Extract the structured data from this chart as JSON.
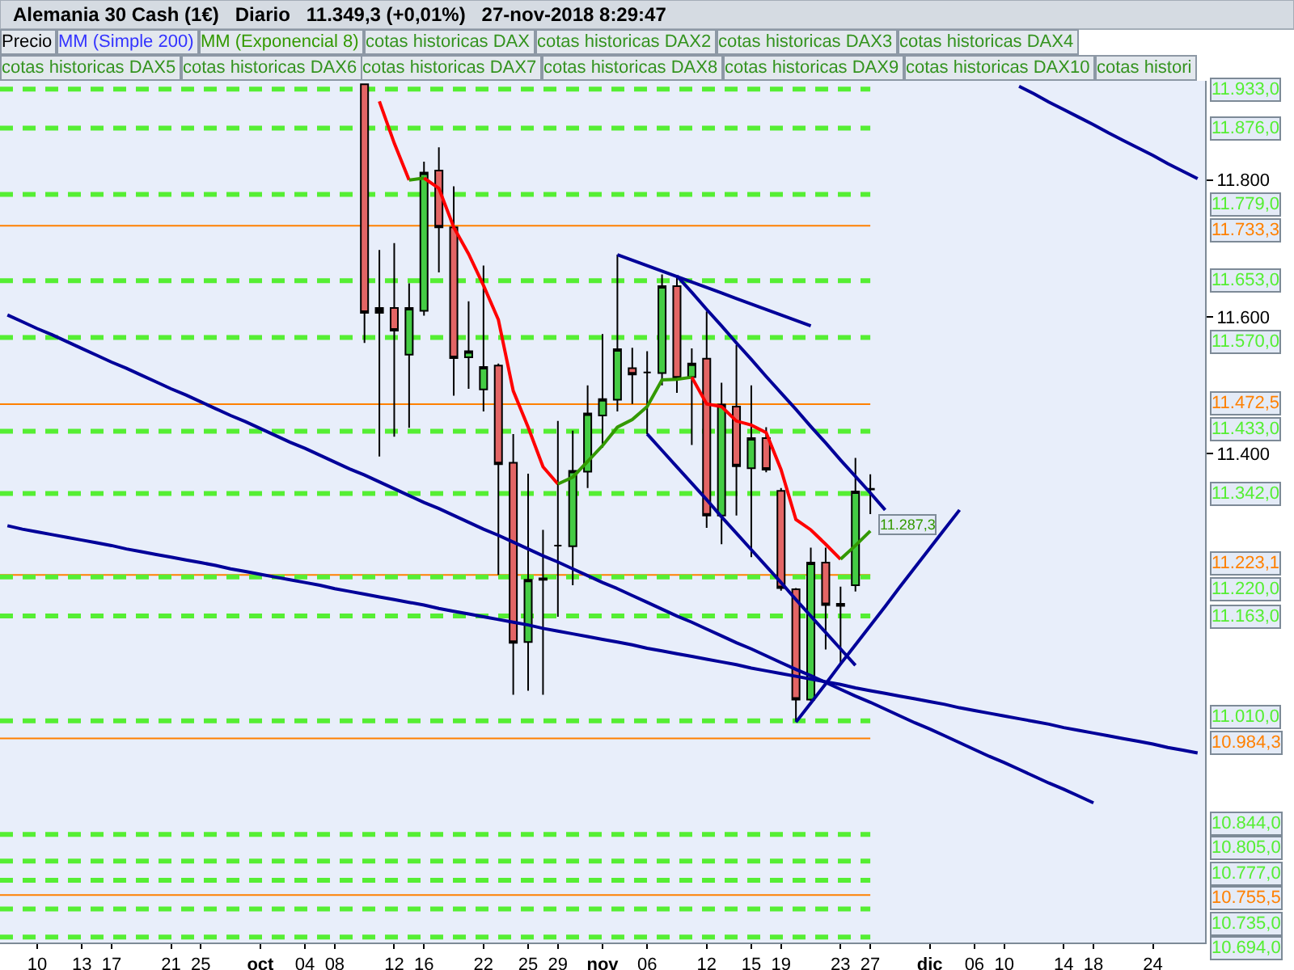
{
  "chart_data": {
    "type": "candlestick",
    "title": "Alemania 30 Cash (1€)   Diario   11.349,3 (+0,01%)   27-nov-2018 8:29:47",
    "categories": [
      null,
      null,
      "10",
      null,
      null,
      "13",
      null,
      "17",
      null,
      null,
      null,
      "21",
      null,
      "25",
      null,
      null,
      null,
      "oct",
      null,
      null,
      "04",
      null,
      "08",
      null,
      null,
      null,
      "12",
      null,
      "16",
      null,
      null,
      null,
      "22",
      null,
      null,
      "25",
      null,
      "29",
      null,
      null,
      "nov",
      null,
      null,
      "06",
      null,
      null,
      null,
      "12",
      null,
      null,
      "15",
      null,
      "19",
      null,
      null,
      null,
      "23",
      null,
      "27",
      null,
      null,
      null,
      "dic",
      null,
      null,
      "06",
      null,
      "10",
      null,
      null,
      null,
      "14",
      null,
      "18",
      null,
      null,
      null,
      "24",
      null,
      null,
      null
    ],
    "series": [
      {
        "name": "Precio",
        "ohlc": [
          null,
          null,
          null,
          null,
          null,
          null,
          null,
          null,
          null,
          null,
          null,
          null,
          null,
          null,
          null,
          null,
          null,
          null,
          null,
          null,
          null,
          null,
          null,
          null,
          [
            11940,
            11940,
            11562,
            11606
          ],
          [
            11606,
            11698,
            11396,
            11613
          ],
          [
            11613,
            11708,
            11425,
            11580
          ],
          [
            11545,
            11649,
            11438,
            11613
          ],
          [
            11609,
            11827,
            11602,
            11811
          ],
          [
            11814,
            11848,
            11665,
            11731
          ],
          [
            11731,
            11791,
            11485,
            11540
          ],
          [
            11541,
            11623,
            11495,
            11550
          ],
          [
            11494,
            11675,
            11462,
            11527
          ],
          [
            11529,
            11532,
            11223,
            11385
          ],
          [
            11387,
            11429,
            11048,
            11124
          ],
          [
            11125,
            11371,
            11054,
            11216
          ],
          [
            11218,
            11289,
            11048,
            11216
          ],
          [
            11266,
            11448,
            11162,
            11266
          ],
          [
            11265,
            11434,
            11208,
            11375
          ],
          [
            11374,
            11500,
            11350,
            11459
          ],
          [
            11456,
            11575,
            11409,
            11480
          ],
          [
            11479,
            11691,
            11462,
            11553
          ],
          [
            11525,
            11555,
            11473,
            11516
          ],
          [
            11519,
            11550,
            11429,
            11519
          ],
          [
            11518,
            11662,
            11500,
            11645
          ],
          [
            11645,
            11660,
            11489,
            11510
          ],
          [
            11512,
            11554,
            11413,
            11532
          ],
          [
            11539,
            11608,
            11292,
            11310
          ],
          [
            11310,
            11504,
            11268,
            11472
          ],
          [
            11469,
            11559,
            11310,
            11382
          ],
          [
            11379,
            11500,
            11249,
            11423
          ],
          [
            11423,
            11439,
            11373,
            11377
          ],
          [
            11346,
            11350,
            11200,
            11204
          ],
          [
            11202,
            11204,
            11010,
            11041
          ],
          [
            11041,
            11263,
            11039,
            11241
          ],
          [
            11241,
            11263,
            11114,
            11179
          ],
          [
            11178,
            11206,
            11092,
            11181
          ],
          [
            11208,
            11394,
            11199,
            11345
          ],
          [
            11348,
            11370,
            11312,
            11349
          ],
          null,
          null,
          null,
          null,
          null,
          null,
          null,
          null,
          null,
          null,
          null,
          null,
          null,
          null,
          null,
          null,
          null,
          null,
          null,
          null,
          null,
          null
        ],
        "colors": [
          null,
          null,
          null,
          null,
          null,
          null,
          null,
          null,
          null,
          null,
          null,
          null,
          null,
          null,
          null,
          null,
          null,
          null,
          null,
          null,
          null,
          null,
          null,
          null,
          "#e36565",
          "#000000",
          "#e36565",
          "#44cc44",
          "#44cc44",
          "#e36565",
          "#e36565",
          "#44cc44",
          "#44cc44",
          "#e36565",
          "#e36565",
          "#44cc44",
          "#000000",
          "#000000",
          "#44cc44",
          "#44cc44",
          "#44cc44",
          "#44cc44",
          "#e36565",
          "#000000",
          "#44cc44",
          "#e36565",
          "#44cc44",
          "#e36565",
          "#44cc44",
          "#e36565",
          "#44cc44",
          "#e36565",
          "#e36565",
          "#e36565",
          "#44cc44",
          "#e36565",
          "#000000",
          "#44cc44",
          "#000000",
          null,
          null,
          null,
          null,
          null,
          null,
          null,
          null,
          null,
          null,
          null,
          null,
          null,
          null,
          null,
          null,
          null,
          null,
          null,
          null,
          null,
          null
        ]
      },
      {
        "name": "MM (Simple 200)",
        "type": "line",
        "color": "#3333ff",
        "values": [
          null,
          null,
          null,
          null,
          null,
          null,
          null,
          null,
          null,
          null,
          null,
          null,
          null,
          null,
          null,
          null,
          null,
          null,
          null,
          null,
          null,
          null,
          null,
          null,
          null,
          null,
          null,
          null,
          null,
          null,
          null,
          null,
          null,
          null,
          null,
          null,
          null,
          null,
          null,
          null,
          null,
          null,
          null,
          null,
          null,
          null,
          null,
          null,
          null,
          null,
          null,
          null,
          null,
          null,
          null,
          null,
          null,
          null,
          null,
          null,
          null,
          null,
          null,
          null,
          null,
          null,
          null,
          null,
          null,
          null,
          null,
          null,
          null,
          null,
          null,
          null,
          null,
          null,
          null,
          null,
          null
        ]
      },
      {
        "type": "line",
        "color": "#ff0000",
        "values": [
          null,
          null,
          null,
          null,
          null,
          null,
          null,
          null,
          null,
          null,
          null,
          null,
          null,
          null,
          null,
          null,
          null,
          null,
          null,
          null,
          null,
          null,
          null,
          null,
          null,
          11915,
          11854,
          11800,
          null,
          null,
          null,
          null,
          null,
          null,
          null,
          null,
          null,
          null,
          null,
          null,
          null,
          null,
          null,
          null,
          null,
          null,
          null,
          null,
          null,
          null,
          null,
          null,
          null,
          null,
          null,
          null,
          null,
          null,
          null,
          null,
          null,
          null,
          null,
          null,
          null,
          null,
          null,
          null,
          null,
          null,
          null,
          null,
          null,
          null,
          null,
          null,
          null,
          null,
          null,
          null,
          null
        ]
      },
      {
        "name": "MM (Exponencial 8)",
        "type": "line",
        "color": "#339900",
        "values": [
          null,
          null,
          null,
          null,
          null,
          null,
          null,
          null,
          null,
          null,
          null,
          null,
          null,
          null,
          null,
          null,
          null,
          null,
          null,
          null,
          null,
          null,
          null,
          null,
          null,
          null,
          null,
          11800,
          11803,
          null,
          null,
          null,
          null,
          null,
          null,
          null,
          null,
          null,
          null,
          null,
          null,
          null,
          null,
          null,
          null,
          null,
          null,
          null,
          null,
          null,
          null,
          null,
          null,
          null,
          null,
          null,
          null,
          null,
          null,
          null,
          null,
          null,
          null,
          null,
          null,
          null,
          null,
          null,
          null,
          null,
          null,
          null,
          null,
          null,
          null,
          null,
          null,
          null,
          null,
          null,
          null
        ]
      },
      {
        "type": "line",
        "color": "#ff0000",
        "values": [
          null,
          null,
          null,
          null,
          null,
          null,
          null,
          null,
          null,
          null,
          null,
          null,
          null,
          null,
          null,
          null,
          null,
          null,
          null,
          null,
          null,
          null,
          null,
          null,
          null,
          null,
          null,
          null,
          11803,
          11788,
          11731,
          11692,
          11646,
          11596,
          11492,
          11439,
          11381,
          11356,
          null,
          null,
          null,
          null,
          null,
          null,
          null,
          null,
          null,
          null,
          null,
          null,
          null,
          null,
          null,
          null,
          null,
          null,
          null,
          null,
          null,
          null,
          null,
          null,
          null,
          null,
          null,
          null,
          null,
          null,
          null,
          null,
          null,
          null,
          null,
          null,
          null,
          null,
          null,
          null,
          null,
          null,
          null
        ]
      },
      {
        "type": "line",
        "color": "#339900",
        "values": [
          null,
          null,
          null,
          null,
          null,
          null,
          null,
          null,
          null,
          null,
          null,
          null,
          null,
          null,
          null,
          null,
          null,
          null,
          null,
          null,
          null,
          null,
          null,
          null,
          null,
          null,
          null,
          null,
          null,
          null,
          null,
          null,
          null,
          null,
          null,
          null,
          null,
          11356,
          11366,
          11389,
          11412,
          11439,
          11450,
          11469,
          11508,
          11509,
          11512,
          null,
          null,
          null,
          null,
          null,
          null,
          null,
          null,
          null,
          null,
          null,
          null,
          null,
          null,
          null,
          null,
          null,
          null,
          null,
          null,
          null,
          null,
          null,
          null,
          null,
          null,
          null,
          null,
          null,
          null,
          null,
          null,
          null,
          null
        ]
      },
      {
        "type": "line",
        "color": "#ff0000",
        "values": [
          null,
          null,
          null,
          null,
          null,
          null,
          null,
          null,
          null,
          null,
          null,
          null,
          null,
          null,
          null,
          null,
          null,
          null,
          null,
          null,
          null,
          null,
          null,
          null,
          null,
          null,
          null,
          null,
          null,
          null,
          null,
          null,
          null,
          null,
          null,
          null,
          null,
          null,
          null,
          null,
          null,
          null,
          null,
          null,
          null,
          null,
          11512,
          11473,
          11469,
          11448,
          11442,
          11431,
          11377,
          11304,
          11289,
          11268,
          11246,
          null,
          null,
          null,
          null,
          null,
          null,
          null,
          null,
          null,
          null,
          null,
          null,
          null,
          null,
          null,
          null,
          null,
          null,
          null,
          null,
          null,
          null,
          null,
          null
        ]
      },
      {
        "type": "line",
        "color": "#339900",
        "values": [
          null,
          null,
          null,
          null,
          null,
          null,
          null,
          null,
          null,
          null,
          null,
          null,
          null,
          null,
          null,
          null,
          null,
          null,
          null,
          null,
          null,
          null,
          null,
          null,
          null,
          null,
          null,
          null,
          null,
          null,
          null,
          null,
          null,
          null,
          null,
          null,
          null,
          null,
          null,
          null,
          null,
          null,
          null,
          null,
          null,
          null,
          null,
          null,
          null,
          null,
          null,
          null,
          null,
          null,
          null,
          null,
          11246,
          11266,
          11287.3,
          null,
          null,
          null,
          null,
          null,
          null,
          null,
          null,
          null,
          null,
          null,
          null,
          null,
          null,
          null,
          null,
          null,
          null,
          null,
          null,
          null,
          null
        ],
        "value_labels": [
          null,
          null,
          null,
          null,
          null,
          null,
          null,
          null,
          null,
          null,
          null,
          null,
          null,
          null,
          null,
          null,
          null,
          null,
          null,
          null,
          null,
          null,
          null,
          null,
          null,
          null,
          null,
          null,
          null,
          null,
          null,
          null,
          null,
          null,
          null,
          null,
          null,
          null,
          null,
          null,
          null,
          null,
          null,
          null,
          null,
          null,
          null,
          null,
          null,
          null,
          null,
          null,
          null,
          null,
          null,
          null,
          null,
          null,
          "11.287,3",
          null,
          null,
          null,
          null,
          null,
          null,
          null,
          null,
          null,
          null,
          null,
          null,
          null,
          null,
          null,
          null,
          null,
          null,
          null,
          null,
          null,
          null
        ]
      },
      {
        "type": "line",
        "color": "#000099",
        "values": [
          11603,
          11593,
          11583,
          11574,
          11564,
          11554,
          11544,
          11534,
          11525,
          11515,
          11505,
          11495,
          11486,
          11476,
          11466,
          11456,
          11447,
          11437,
          11427,
          11417,
          11408,
          11398,
          11388,
          11378,
          11369,
          11359,
          11349,
          11339,
          11329,
          11320,
          11310,
          11300,
          11290,
          11281,
          11271,
          11261,
          11251,
          11242,
          11232,
          11222,
          11212,
          11203,
          11193,
          11183,
          11173,
          11163,
          11154,
          11144,
          11134,
          11124,
          11115,
          11105,
          11095,
          11085,
          11076,
          11066,
          11056,
          11046,
          11037,
          11027,
          11017,
          11007,
          10998,
          10988,
          10978,
          10968,
          10958,
          10949,
          10939,
          10929,
          10919,
          10910,
          10900,
          10890,
          null,
          null,
          null,
          null,
          null,
          null,
          null
        ]
      },
      {
        "type": "line",
        "color": "#000099",
        "values": [
          11295,
          11290,
          11286,
          11282,
          11278,
          11274,
          11270,
          11266,
          11261,
          11257,
          11253,
          11249,
          11245,
          11241,
          11237,
          11232,
          11228,
          11224,
          11220,
          11216,
          11212,
          11208,
          11203,
          11199,
          11195,
          11191,
          11187,
          11183,
          11179,
          11174,
          11170,
          11166,
          11162,
          11158,
          11154,
          11150,
          11145,
          11141,
          11137,
          11133,
          11129,
          11125,
          11121,
          11116,
          11112,
          11108,
          11104,
          11100,
          11096,
          11092,
          11087,
          11083,
          11079,
          11075,
          11071,
          11067,
          11063,
          11058,
          11054,
          11050,
          11046,
          11042,
          11038,
          11034,
          11029,
          11025,
          11021,
          11017,
          11013,
          11009,
          11005,
          11000,
          10996,
          10992,
          10988,
          10984,
          10980,
          10976,
          10971,
          10967,
          10963
        ]
      },
      {
        "type": "line",
        "color": "#000099",
        "values": [
          null,
          null,
          null,
          null,
          null,
          null,
          null,
          null,
          null,
          null,
          null,
          null,
          null,
          null,
          null,
          null,
          null,
          null,
          null,
          null,
          null,
          null,
          null,
          null,
          null,
          null,
          null,
          null,
          null,
          null,
          null,
          null,
          null,
          null,
          null,
          null,
          null,
          null,
          null,
          null,
          null,
          11691,
          11683,
          11675,
          11667,
          11659,
          11651,
          11643,
          11635,
          11627,
          11619,
          11611,
          11603,
          11595,
          11587,
          null,
          null,
          null,
          null,
          null,
          null,
          null,
          null,
          null,
          null,
          null,
          null,
          null,
          null,
          null,
          null,
          null,
          null,
          null,
          null,
          null,
          null,
          null,
          null,
          null,
          null
        ]
      },
      {
        "type": "line",
        "color": "#000099",
        "values": [
          null,
          null,
          null,
          null,
          null,
          null,
          null,
          null,
          null,
          null,
          null,
          null,
          null,
          null,
          null,
          null,
          null,
          null,
          null,
          null,
          null,
          null,
          null,
          null,
          null,
          null,
          null,
          null,
          null,
          null,
          null,
          null,
          null,
          null,
          null,
          null,
          null,
          null,
          null,
          null,
          null,
          null,
          null,
          null,
          null,
          11660,
          11636,
          11611,
          11587,
          11562,
          11538,
          11513,
          11489,
          11465,
          11440,
          11416,
          11391,
          11367,
          11343,
          11318,
          null,
          null,
          null,
          null,
          null,
          null,
          null,
          null,
          null,
          null,
          null,
          null,
          null,
          null,
          null,
          null,
          null,
          null,
          null,
          null,
          null
        ]
      },
      {
        "type": "line",
        "color": "#000099",
        "values": [
          null,
          null,
          null,
          null,
          null,
          null,
          null,
          null,
          null,
          null,
          null,
          null,
          null,
          null,
          null,
          null,
          null,
          null,
          null,
          null,
          null,
          null,
          null,
          null,
          null,
          null,
          null,
          null,
          null,
          null,
          null,
          null,
          null,
          null,
          null,
          null,
          null,
          null,
          null,
          null,
          null,
          null,
          null,
          11429,
          11405,
          11381,
          11357,
          11333,
          11308,
          11284,
          11260,
          11236,
          11212,
          11187,
          11163,
          11139,
          11115,
          11091,
          null,
          null,
          null,
          null,
          null,
          null,
          null,
          null,
          null,
          null,
          null,
          null,
          null,
          null,
          null,
          null,
          null,
          null,
          null,
          null,
          null,
          null,
          null
        ]
      },
      {
        "type": "line",
        "color": "#000099",
        "values": [
          null,
          null,
          null,
          null,
          null,
          null,
          null,
          null,
          null,
          null,
          null,
          null,
          null,
          null,
          null,
          null,
          null,
          null,
          null,
          null,
          null,
          null,
          null,
          null,
          null,
          null,
          null,
          null,
          null,
          null,
          null,
          null,
          null,
          null,
          null,
          null,
          null,
          null,
          null,
          null,
          null,
          null,
          null,
          null,
          null,
          null,
          null,
          null,
          null,
          null,
          null,
          null,
          null,
          11008,
          11036,
          11064,
          11093,
          11121,
          11149,
          11177,
          11206,
          11234,
          11262,
          11290,
          11318,
          null,
          null,
          null,
          null,
          null,
          null,
          null,
          null,
          null,
          null,
          null,
          null,
          null,
          null,
          null,
          null
        ]
      },
      {
        "type": "line",
        "color": "#000099",
        "values": [
          null,
          null,
          null,
          null,
          null,
          null,
          null,
          null,
          null,
          null,
          null,
          null,
          null,
          null,
          null,
          null,
          null,
          null,
          null,
          null,
          null,
          null,
          null,
          null,
          null,
          null,
          null,
          null,
          null,
          null,
          null,
          null,
          null,
          null,
          null,
          null,
          null,
          null,
          null,
          null,
          null,
          null,
          null,
          null,
          null,
          null,
          null,
          null,
          null,
          null,
          null,
          null,
          null,
          null,
          null,
          null,
          null,
          null,
          null,
          null,
          null,
          null,
          null,
          null,
          null,
          null,
          null,
          null,
          11937,
          11926,
          11914,
          11903,
          11892,
          11881,
          11869,
          11858,
          11847,
          11836,
          11824,
          11813,
          11802
        ]
      }
    ],
    "ref_lines": [
      {
        "axis": "y",
        "value": 11933,
        "label": "11.933,0",
        "color": "#55ee33",
        "line_style": "dashed"
      },
      {
        "axis": "y",
        "value": 11876,
        "label": "11.876,0",
        "color": "#55ee33",
        "line_style": "dashed"
      },
      {
        "axis": "y",
        "value": 11779,
        "label": "11.779,0",
        "color": "#55ee33",
        "line_style": "dashed"
      },
      {
        "axis": "y",
        "value": 11733.3,
        "label": "11.733,3",
        "color": "#ff8000",
        "line_style": "solid"
      },
      {
        "axis": "y",
        "value": 11653,
        "label": "11.653,0",
        "color": "#55ee33",
        "line_style": "dashed"
      },
      {
        "axis": "y",
        "value": 11570,
        "label": "11.570,0",
        "color": "#55ee33",
        "line_style": "dashed"
      },
      {
        "axis": "y",
        "value": 11472.5,
        "label": "11.472,5",
        "color": "#ff8000",
        "line_style": "solid"
      },
      {
        "axis": "y",
        "value": 11433,
        "label": "11.433,0",
        "color": "#55ee33",
        "line_style": "dashed"
      },
      {
        "axis": "y",
        "value": 11342,
        "label": "11.342,0",
        "color": "#55ee33",
        "line_style": "dashed"
      },
      {
        "axis": "y",
        "value": 11223.1,
        "label": "11.223,1",
        "color": "#ff8000",
        "line_style": "solid"
      },
      {
        "axis": "y",
        "value": 11220,
        "label": "11.220,0",
        "color": "#55ee33",
        "line_style": "dashed"
      },
      {
        "axis": "y",
        "value": 11163,
        "label": "11.163,0",
        "color": "#55ee33",
        "line_style": "dashed"
      },
      {
        "axis": "y",
        "value": 11010,
        "label": "11.010,0",
        "color": "#55ee33",
        "line_style": "dashed"
      },
      {
        "axis": "y",
        "value": 10984.3,
        "label": "10.984,3",
        "color": "#ff8000",
        "line_style": "solid"
      },
      {
        "axis": "y",
        "value": 10844,
        "label": "10.844,0",
        "color": "#55ee33",
        "line_style": "dashed"
      },
      {
        "axis": "y",
        "value": 10805,
        "label": "10.805,0",
        "color": "#55ee33",
        "line_style": "dashed"
      },
      {
        "axis": "y",
        "value": 10777,
        "label": "10.777,0",
        "color": "#55ee33",
        "line_style": "dashed"
      },
      {
        "axis": "y",
        "value": 10755.5,
        "label": "10.755,5",
        "color": "#ff8000",
        "line_style": "solid"
      },
      {
        "axis": "y",
        "value": 10735,
        "label": "10.735,0",
        "color": "#55ee33",
        "line_style": "dashed"
      },
      {
        "axis": "y",
        "value": 10694,
        "label": "10.694,0",
        "color": "#55ee33",
        "line_style": "dashed"
      }
    ],
    "annotations": [
      "cotas historicas DAX",
      "cotas historicas DAX2",
      "cotas historicas DAX3",
      "cotas historicas DAX4",
      "cotas historicas DAX5",
      "cotas historicas DAX6",
      "cotas historicas DAX7",
      "cotas historicas DAX8",
      "cotas historicas DAX9",
      "cotas historicas DAX10",
      "cotas histori"
    ],
    "ylim": [
      10686,
      11945
    ],
    "yticks": [
      {
        "value": 11400,
        "label": "11.400"
      },
      {
        "value": 11600,
        "label": "11.600"
      },
      {
        "value": 11800,
        "label": "11.800"
      }
    ],
    "legend": "top left"
  }
}
